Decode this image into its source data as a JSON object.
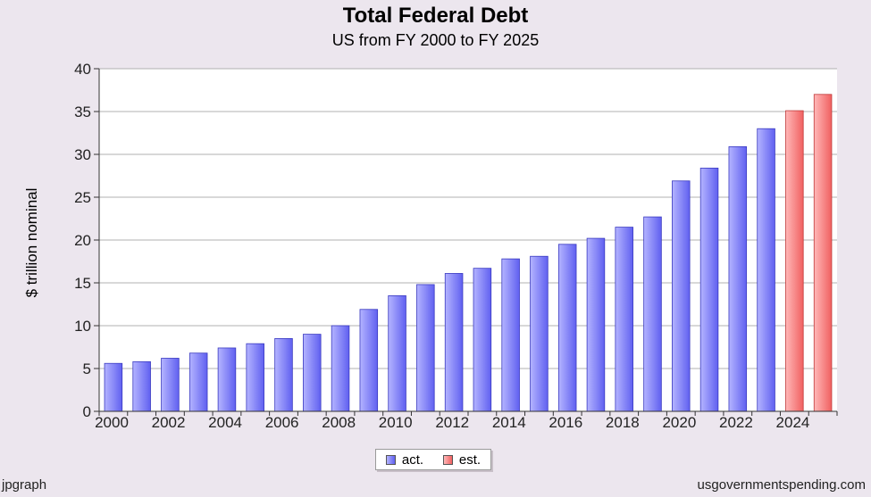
{
  "chart_data": {
    "type": "bar",
    "title": "Total Federal Debt",
    "subtitle": "US from FY 2000 to FY 2025",
    "ylabel": "$ trillion nominal",
    "xlabel": "",
    "ylim": [
      0,
      40
    ],
    "yticks": [
      0,
      5,
      10,
      15,
      20,
      25,
      30,
      35,
      40
    ],
    "x_tick_labels": [
      "2000",
      "2002",
      "2004",
      "2006",
      "2008",
      "2010",
      "2012",
      "2014",
      "2016",
      "2018",
      "2020",
      "2022",
      "2024"
    ],
    "categories": [
      "2000",
      "2001",
      "2002",
      "2003",
      "2004",
      "2005",
      "2006",
      "2007",
      "2008",
      "2009",
      "2010",
      "2011",
      "2012",
      "2013",
      "2014",
      "2015",
      "2016",
      "2017",
      "2018",
      "2019",
      "2020",
      "2021",
      "2022",
      "2023",
      "2024",
      "2025"
    ],
    "series": [
      {
        "name": "act.",
        "color": "#8080ff",
        "values": [
          5.6,
          5.8,
          6.2,
          6.8,
          7.4,
          7.9,
          8.5,
          9.0,
          10.0,
          11.9,
          13.5,
          14.8,
          16.1,
          16.7,
          17.8,
          18.1,
          19.5,
          20.2,
          21.5,
          22.7,
          26.9,
          28.4,
          30.9,
          33.0,
          null,
          null
        ]
      },
      {
        "name": "est.",
        "color": "#ff8080",
        "values": [
          null,
          null,
          null,
          null,
          null,
          null,
          null,
          null,
          null,
          null,
          null,
          null,
          null,
          null,
          null,
          null,
          null,
          null,
          null,
          null,
          null,
          null,
          null,
          null,
          35.1,
          37.0
        ]
      }
    ],
    "grid": true,
    "legend_position": "bottom-center"
  },
  "footer": {
    "left": "jpgraph",
    "right": "usgovernmentspending.com"
  }
}
